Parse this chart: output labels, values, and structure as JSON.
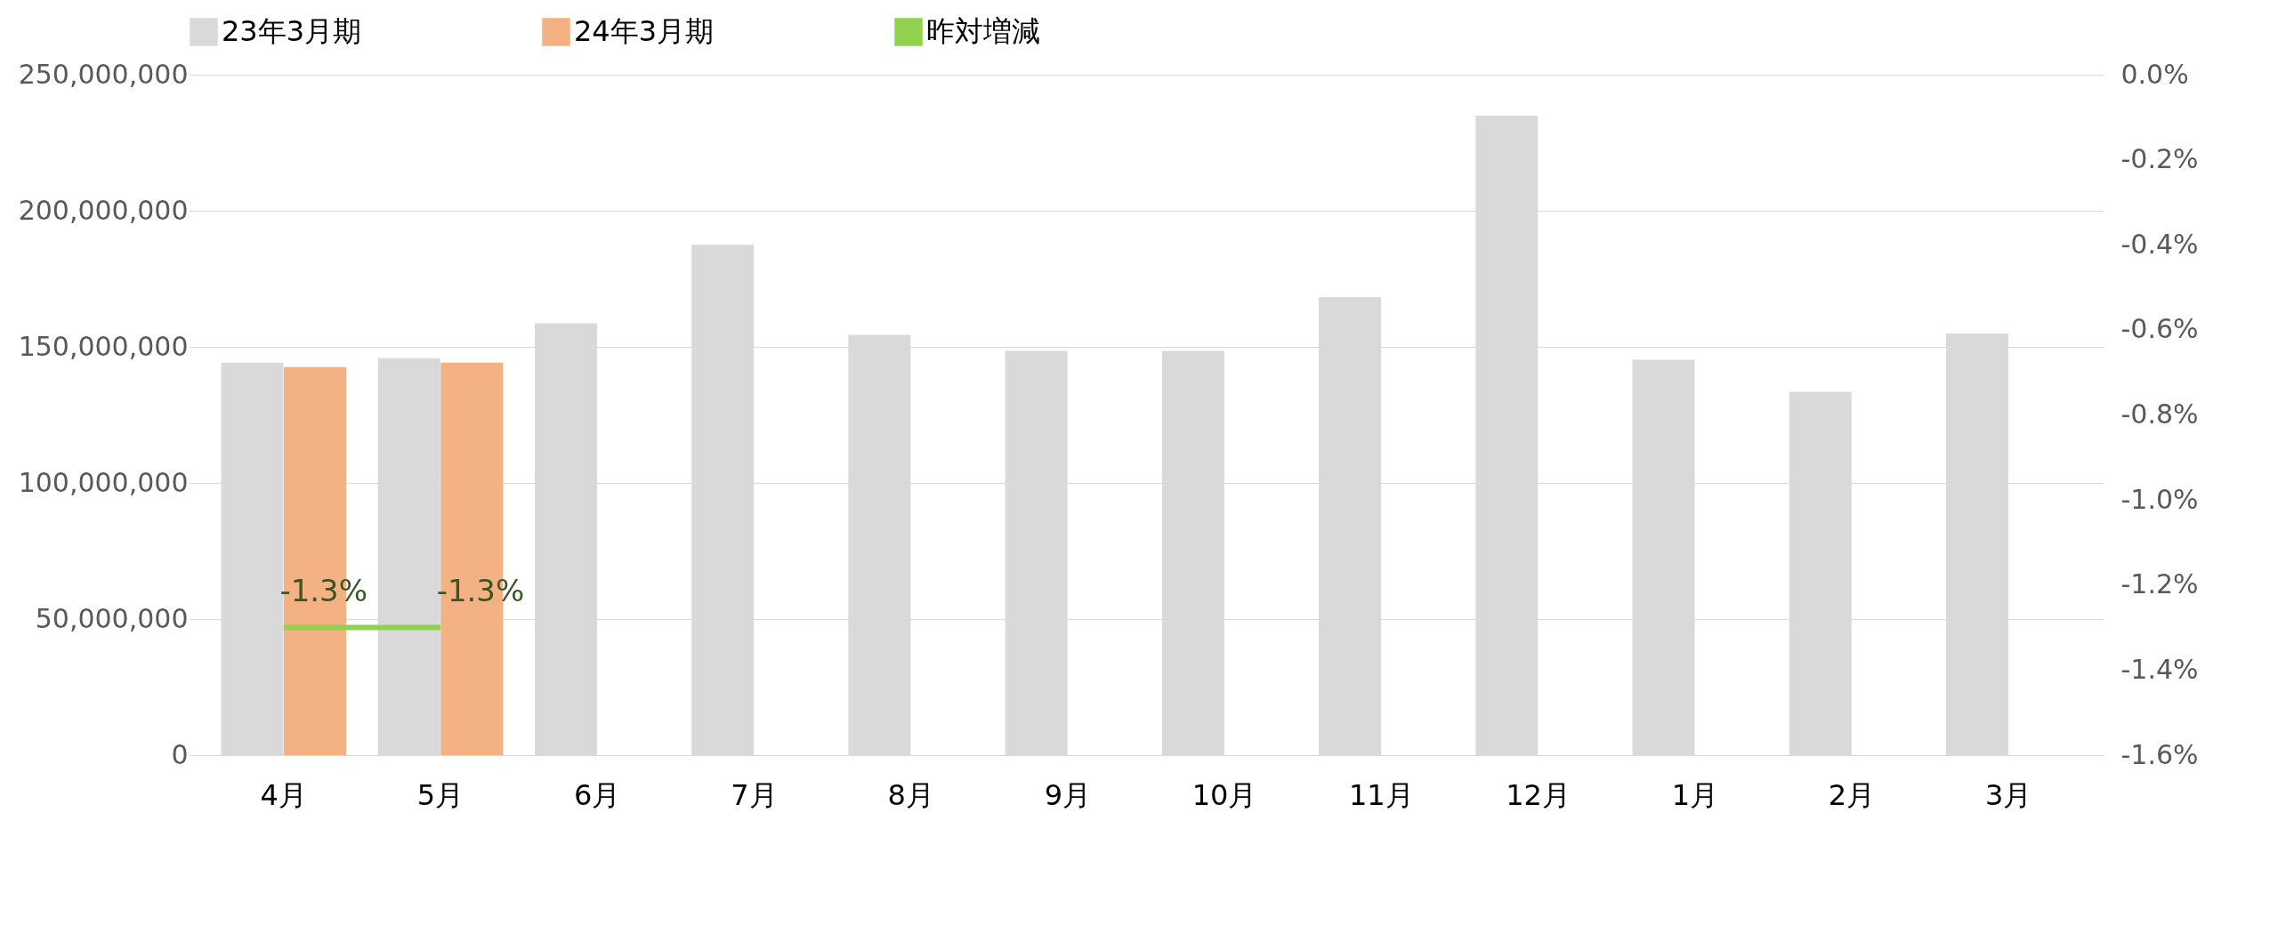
{
  "chart_data": {
    "type": "bar",
    "categories": [
      "4月",
      "5月",
      "6月",
      "7月",
      "8月",
      "9月",
      "10月",
      "11月",
      "12月",
      "1月",
      "2月",
      "3月"
    ],
    "series": [
      {
        "name": "23年3月期",
        "color": "#d9d9d9",
        "values": [
          144200000,
          145800000,
          158700000,
          187500000,
          154400000,
          148500000,
          148500000,
          168300000,
          235000000,
          145300000,
          133500000,
          154900000
        ]
      },
      {
        "name": "24年3月期",
        "color": "#f4b183",
        "values": [
          142600000,
          144200000,
          null,
          null,
          null,
          null,
          null,
          null,
          null,
          null,
          null,
          null
        ]
      },
      {
        "name": "昨対増減",
        "type": "line",
        "axis": "y2",
        "color": "#92d050",
        "values": [
          -1.3,
          -1.3,
          null,
          null,
          null,
          null,
          null,
          null,
          null,
          null,
          null,
          null
        ],
        "value_labels": [
          "-1.3%",
          "-1.3%",
          null,
          null,
          null,
          null,
          null,
          null,
          null,
          null,
          null,
          null
        ]
      }
    ],
    "ylim": [
      0,
      250000000
    ],
    "yticks": [
      0,
      {
        "value": 50000000,
        "label": "50,000,000"
      },
      {
        "value": 100000000,
        "label": "100,000,000"
      },
      {
        "value": 150000000,
        "label": "150,000,000"
      },
      {
        "value": 200000000,
        "label": "200,000,000"
      },
      {
        "value": 250000000,
        "label": "250,000,000"
      }
    ],
    "y2lim": [
      -1.6,
      0
    ],
    "y2ticks": [
      {
        "value": -1.6,
        "label": "-1.6%"
      },
      {
        "value": -1.4,
        "label": "-1.4%"
      },
      {
        "value": -1.2,
        "label": "-1.2%"
      },
      {
        "value": -1.0,
        "label": "-1.0%"
      },
      {
        "value": -0.8,
        "label": "-0.8%"
      },
      {
        "value": -0.6,
        "label": "-0.6%"
      },
      {
        "value": -0.4,
        "label": "-0.4%"
      },
      {
        "value": -0.2,
        "label": "-0.2%"
      },
      {
        "value": 0,
        "label": "0.0%"
      }
    ],
    "grid": "y",
    "legend": "top"
  }
}
